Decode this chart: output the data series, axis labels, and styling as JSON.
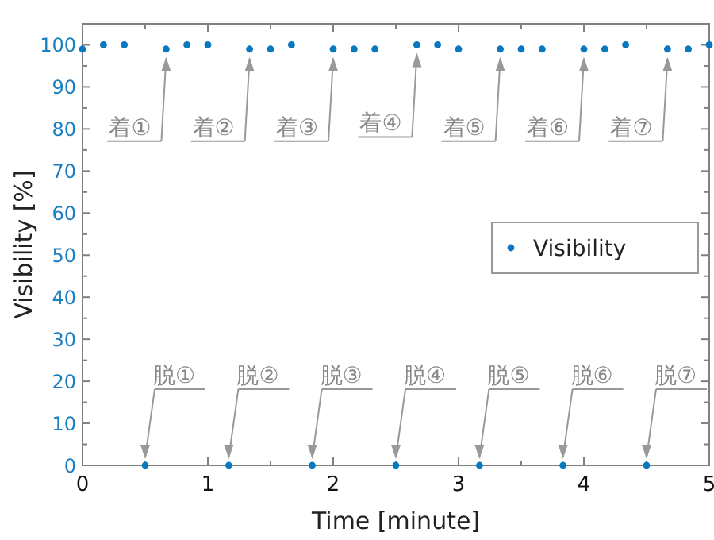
{
  "chart_data": {
    "type": "scatter",
    "xlabel": "Time [minute]",
    "ylabel": "Visibility [%]",
    "xlim": [
      0,
      5
    ],
    "ylim": [
      0,
      105
    ],
    "xticks": [
      0,
      1,
      2,
      3,
      4,
      5
    ],
    "yticks": [
      0,
      10,
      20,
      30,
      40,
      50,
      60,
      70,
      80,
      90,
      100
    ],
    "marker": "circle",
    "legend": "right",
    "grid": false,
    "series": [
      {
        "name": "Visibility",
        "color": "#0a78c0",
        "x": [
          0,
          0.167,
          0.333,
          0.5,
          0.667,
          0.833,
          1,
          1.167,
          1.333,
          1.5,
          1.667,
          1.833,
          2,
          2.167,
          2.333,
          2.5,
          2.667,
          2.833,
          3,
          3.167,
          3.333,
          3.5,
          3.667,
          3.833,
          4,
          4.167,
          4.333,
          4.5,
          4.667,
          4.833,
          5
        ],
        "values": [
          99,
          100,
          100,
          0,
          99,
          100,
          100,
          0,
          99,
          99,
          100,
          0,
          99,
          99,
          99,
          0,
          100,
          100,
          99,
          0,
          99,
          99,
          99,
          0,
          99,
          99,
          100,
          0,
          99,
          99,
          100
        ]
      }
    ],
    "annotations": [
      {
        "text": "着①",
        "x": 0.667,
        "y": 99
      },
      {
        "text": "着②",
        "x": 1.333,
        "y": 99
      },
      {
        "text": "着③",
        "x": 2,
        "y": 99
      },
      {
        "text": "着④",
        "x": 2.667,
        "y": 100
      },
      {
        "text": "着⑤",
        "x": 3.333,
        "y": 99
      },
      {
        "text": "着⑥",
        "x": 4,
        "y": 99
      },
      {
        "text": "着⑦",
        "x": 4.667,
        "y": 99
      },
      {
        "text": "脱①",
        "x": 0.5,
        "y": 0
      },
      {
        "text": "脱②",
        "x": 1.167,
        "y": 0
      },
      {
        "text": "脱③",
        "x": 1.833,
        "y": 0
      },
      {
        "text": "脱④",
        "x": 2.5,
        "y": 0
      },
      {
        "text": "脱⑤",
        "x": 3.167,
        "y": 0
      },
      {
        "text": "脱⑥",
        "x": 3.833,
        "y": 0
      },
      {
        "text": "脱⑦",
        "x": 4.5,
        "y": 0
      }
    ]
  }
}
